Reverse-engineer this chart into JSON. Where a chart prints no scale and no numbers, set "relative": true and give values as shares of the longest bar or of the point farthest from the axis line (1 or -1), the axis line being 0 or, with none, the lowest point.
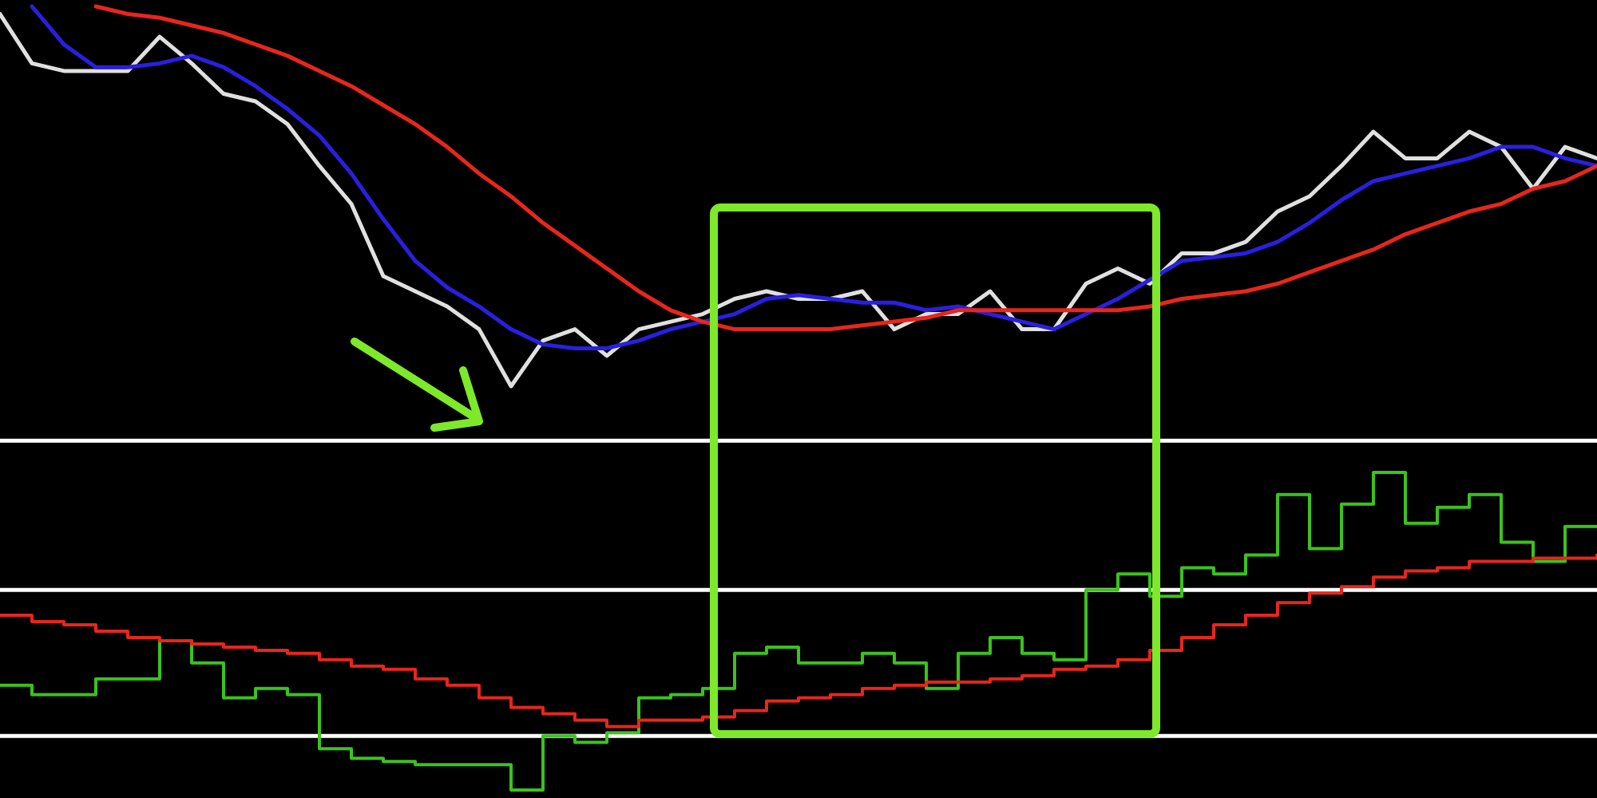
{
  "chart_data": [
    {
      "type": "line",
      "relative": true,
      "categories": [
        null,
        null,
        null,
        null,
        null,
        null,
        null,
        null,
        null,
        null,
        null,
        null,
        null,
        null,
        null,
        null,
        null,
        null,
        null,
        null,
        null,
        null,
        null,
        null,
        null,
        null,
        null,
        null,
        null,
        null,
        null,
        null,
        null,
        null,
        null,
        null,
        null,
        null,
        null,
        null,
        null,
        null,
        null,
        null,
        null,
        null,
        null,
        null,
        null,
        null,
        null
      ],
      "series": [
        {
          "color": "#e0e0e0",
          "values": [
            0.98,
            0.85,
            0.83,
            0.83,
            0.83,
            0.92,
            0.85,
            0.77,
            0.75,
            0.69,
            0.58,
            0.48,
            0.29,
            0.25,
            0.21,
            0.15,
            0,
            0.12,
            0.15,
            0.08,
            0.15,
            0.17,
            0.19,
            0.23,
            0.25,
            0.23,
            0.23,
            0.25,
            0.15,
            0.19,
            0.19,
            0.25,
            0.15,
            0.15,
            0.27,
            0.31,
            0.27,
            0.35,
            0.35,
            0.38,
            0.46,
            0.5,
            0.58,
            0.67,
            0.6,
            0.6,
            0.67,
            0.63,
            0.52,
            0.63,
            0.6
          ]
        },
        {
          "color": "#2a1fe0",
          "values": [
            null,
            1,
            0.9,
            0.84,
            0.84,
            0.85,
            0.87,
            0.84,
            0.79,
            0.73,
            0.66,
            0.56,
            0.44,
            0.33,
            0.26,
            0.21,
            0.15,
            0.11,
            0.1,
            0.1,
            0.12,
            0.15,
            0.17,
            0.19,
            0.23,
            0.24,
            0.23,
            0.22,
            0.22,
            0.2,
            0.21,
            0.19,
            0.17,
            0.15,
            0.19,
            0.23,
            0.28,
            0.33,
            0.34,
            0.35,
            0.38,
            0.43,
            0.49,
            0.54,
            0.56,
            0.58,
            0.6,
            0.63,
            0.63,
            0.6,
            0.58
          ]
        },
        {
          "color": "#e8261c",
          "values": [
            null,
            null,
            null,
            1,
            0.98,
            0.97,
            0.95,
            0.93,
            0.9,
            0.87,
            0.83,
            0.79,
            0.74,
            0.69,
            0.63,
            0.56,
            0.5,
            0.43,
            0.37,
            0.31,
            0.25,
            0.2,
            0.17,
            0.15,
            0.15,
            0.15,
            0.15,
            0.16,
            0.17,
            0.18,
            0.2,
            0.2,
            0.2,
            0.2,
            0.2,
            0.2,
            0.21,
            0.23,
            0.24,
            0.25,
            0.27,
            0.3,
            0.33,
            0.36,
            0.4,
            0.43,
            0.46,
            0.48,
            0.52,
            0.54,
            0.58
          ]
        }
      ]
    },
    {
      "type": "step",
      "relative": true,
      "categories": [
        null,
        null,
        null,
        null,
        null,
        null,
        null,
        null,
        null,
        null,
        null,
        null,
        null,
        null,
        null,
        null,
        null,
        null,
        null,
        null,
        null,
        null,
        null,
        null,
        null,
        null,
        null,
        null,
        null,
        null,
        null,
        null,
        null,
        null,
        null,
        null,
        null,
        null,
        null,
        null,
        null,
        null,
        null,
        null,
        null,
        null,
        null,
        null,
        null,
        null,
        null
      ],
      "series": [
        {
          "color": "#3cc21e",
          "values": [
            0.33,
            0.3,
            0.3,
            0.35,
            0.35,
            0.47,
            0.4,
            0.29,
            0.32,
            0.3,
            0.13,
            0.1,
            0.09,
            0.08,
            0.08,
            0.08,
            0,
            0.17,
            0.15,
            0.18,
            0.29,
            0.3,
            0.32,
            0.43,
            0.45,
            0.4,
            0.4,
            0.43,
            0.4,
            0.32,
            0.43,
            0.48,
            0.43,
            0.41,
            0.63,
            0.68,
            0.61,
            0.7,
            0.68,
            0.74,
            0.93,
            0.76,
            0.9,
            1,
            0.84,
            0.89,
            0.93,
            0.78,
            0.72,
            0.83,
            0.83
          ]
        },
        {
          "color": "#e8261c",
          "values": [
            0.55,
            0.53,
            0.52,
            0.5,
            0.48,
            0.47,
            0.46,
            0.45,
            0.44,
            0.43,
            0.41,
            0.39,
            0.38,
            0.35,
            0.33,
            0.29,
            0.26,
            0.24,
            0.22,
            0.2,
            0.22,
            0.22,
            0.23,
            0.25,
            0.28,
            0.29,
            0.3,
            0.32,
            0.33,
            0.34,
            0.34,
            0.35,
            0.36,
            0.38,
            0.39,
            0.41,
            0.44,
            0.48,
            0.52,
            0.55,
            0.59,
            0.62,
            0.64,
            0.67,
            0.69,
            0.7,
            0.72,
            0.72,
            0.73,
            0.73,
            0.74
          ]
        }
      ],
      "ref_lines": [
        {
          "axis": "y",
          "value": 1.1,
          "color": "#ffffff"
        },
        {
          "axis": "y",
          "value": 0.63,
          "color": "#ffffff"
        },
        {
          "axis": "y",
          "value": 0.17,
          "color": "#ffffff"
        }
      ]
    }
  ]
}
